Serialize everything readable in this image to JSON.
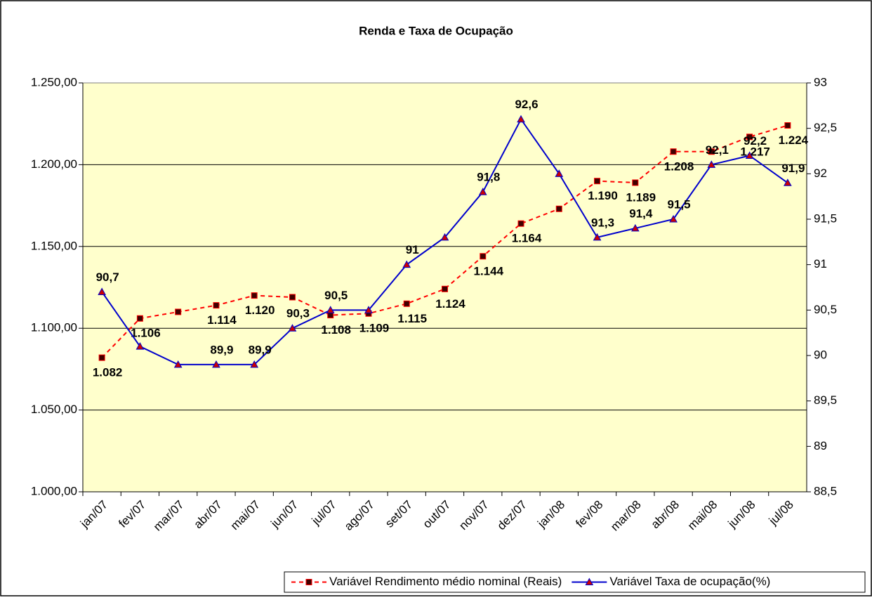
{
  "chart_data": {
    "type": "line",
    "title": "Renda e Taxa de Ocupação",
    "categories": [
      "jan/07",
      "fev/07",
      "mar/07",
      "abr/07",
      "mai/07",
      "jun/07",
      "jul/07",
      "ago/07",
      "set/07",
      "out/07",
      "nov/07",
      "dez/07",
      "jan/08",
      "fev/08",
      "mar/08",
      "abr/08",
      "mai/08",
      "jun/08",
      "jul/08"
    ],
    "series": [
      {
        "name": "Variável Rendimento médio nominal (Reais)",
        "color": "#ff0000",
        "dashed": true,
        "marker": "square",
        "values": [
          1082,
          1106,
          1110,
          1114,
          1120,
          1119,
          1108,
          1109,
          1115,
          1124,
          1144,
          1164,
          1173,
          1190,
          1189,
          1208,
          1208,
          1217,
          1224
        ],
        "value_labels": [
          "1.082",
          "1.106",
          null,
          "1.114",
          "1.120",
          null,
          "1.108",
          "1.109",
          "1.115",
          "1.124",
          "1.144",
          "1.164",
          null,
          "1.190",
          "1.189",
          "1.208",
          null,
          "1.217",
          "1.224"
        ]
      },
      {
        "name": "Variável Taxa de ocupação(%)",
        "color": "#0000cc",
        "dashed": false,
        "marker": "triangle",
        "axis": "y2",
        "values": [
          90.7,
          90.1,
          89.9,
          89.9,
          89.9,
          90.3,
          90.5,
          90.5,
          91,
          91.3,
          91.8,
          92.6,
          92.0,
          91.3,
          91.4,
          91.5,
          92.1,
          92.2,
          91.9
        ],
        "value_labels": [
          "90,7",
          null,
          null,
          "89,9",
          "89,9",
          "90,3",
          "90,5",
          null,
          "91",
          null,
          "91,8",
          "92,6",
          null,
          "91,3",
          "91,4",
          "91,5",
          "92,1",
          "92,2",
          "91,9"
        ]
      }
    ],
    "ylim": [
      1000,
      1250
    ],
    "yticks": [
      {
        "value": 1000,
        "label": "1.000,00"
      },
      {
        "value": 1050,
        "label": "1.050,00"
      },
      {
        "value": 1100,
        "label": "1.100,00"
      },
      {
        "value": 1150,
        "label": "1.150,00"
      },
      {
        "value": 1200,
        "label": "1.200,00"
      },
      {
        "value": 1250,
        "label": "1.250,00"
      }
    ],
    "y2lim": [
      88.5,
      93
    ],
    "y2ticks": [
      {
        "value": 88.5,
        "label": "88,5"
      },
      89,
      {
        "value": 89.5,
        "label": "89,5"
      },
      90,
      {
        "value": 90.5,
        "label": "90,5"
      },
      91,
      {
        "value": 91.5,
        "label": "91,5"
      },
      92,
      {
        "value": 92.5,
        "label": "92,5"
      },
      93
    ],
    "grid": true,
    "legend": "bottom-right",
    "plot_background": "#ffffcc"
  }
}
